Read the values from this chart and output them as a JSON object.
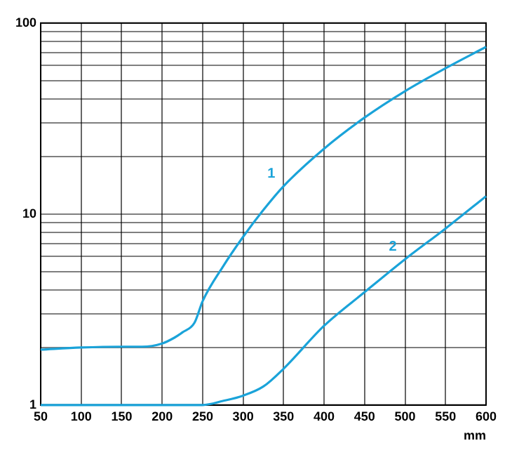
{
  "chart_data": {
    "type": "line",
    "xlabel": "mm",
    "x": [
      50,
      100,
      150,
      175,
      200,
      215,
      225,
      240,
      250,
      275,
      300,
      325,
      350,
      400,
      450,
      500,
      550,
      600
    ],
    "series": [
      {
        "name": "1",
        "color": "#1aa3d9",
        "values": [
          1.95,
          2.0,
          2.02,
          2.02,
          2.1,
          2.25,
          2.4,
          2.7,
          3.5,
          5.3,
          7.6,
          10.5,
          14,
          22,
          32,
          44,
          58,
          75
        ]
      },
      {
        "name": "2",
        "color": "#1aa3d9",
        "values": [
          1.0,
          1.0,
          1.0,
          1.0,
          1.0,
          1.0,
          1.0,
          1.0,
          1.0,
          1.05,
          1.12,
          1.25,
          1.55,
          2.6,
          3.9,
          5.8,
          8.4,
          12.4
        ]
      }
    ],
    "xlim": [
      50,
      600
    ],
    "xticks": [
      50,
      100,
      150,
      200,
      250,
      300,
      350,
      400,
      450,
      500,
      550,
      600
    ],
    "ylim": [
      1,
      100
    ],
    "yticks": [
      1,
      {
        "value": 2,
        "label": null
      },
      {
        "value": 3,
        "label": null
      },
      {
        "value": 4,
        "label": null
      },
      {
        "value": 5,
        "label": null
      },
      {
        "value": 6,
        "label": null
      },
      {
        "value": 7,
        "label": null
      },
      {
        "value": 8,
        "label": null
      },
      {
        "value": 9,
        "label": null
      },
      10,
      {
        "value": 20,
        "label": null
      },
      {
        "value": 30,
        "label": null
      },
      {
        "value": 40,
        "label": null
      },
      {
        "value": 50,
        "label": null
      },
      {
        "value": 60,
        "label": null
      },
      {
        "value": 70,
        "label": null
      },
      {
        "value": 80,
        "label": null
      },
      {
        "value": 90,
        "label": null
      },
      100
    ],
    "log": "y",
    "grid": true,
    "marker": "none",
    "line_style": "solid",
    "legend": false
  }
}
